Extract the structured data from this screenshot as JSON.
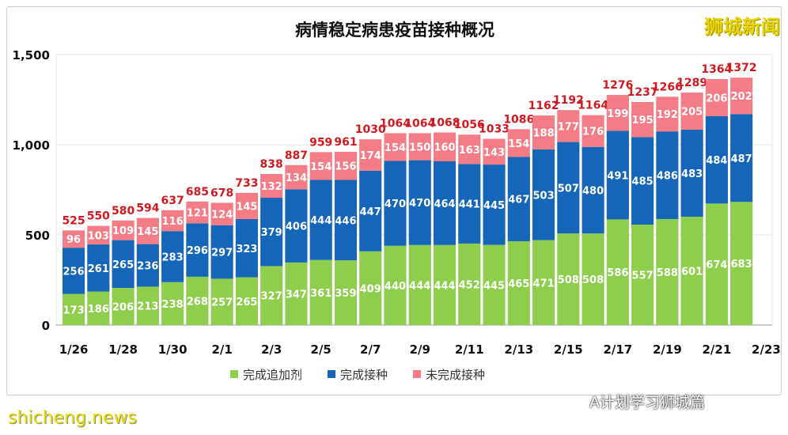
{
  "brand": "狮城新闻",
  "site_watermark": "shicheng.news",
  "wechat_watermark": "A计划学习狮城篇",
  "chart_data": {
    "type": "bar",
    "stacked": true,
    "title": "病情稳定病患疫苗接种概况",
    "categories": [
      "1/26",
      "1/27",
      "1/28",
      "1/29",
      "1/30",
      "1/31",
      "2/1",
      "2/2",
      "2/3",
      "2/4",
      "2/5",
      "2/6",
      "2/7",
      "2/8",
      "2/9",
      "2/10",
      "2/11",
      "2/12",
      "2/13",
      "2/14",
      "2/15",
      "2/16",
      "2/17",
      "2/18",
      "2/19",
      "2/20",
      "2/21",
      "2/22"
    ],
    "xtick_labels": [
      "1/26",
      "1/28",
      "1/30",
      "2/1",
      "2/3",
      "2/5",
      "2/7",
      "2/9",
      "2/11",
      "2/13",
      "2/15",
      "2/17",
      "2/19",
      "2/21",
      "2/23"
    ],
    "yticks": [
      0,
      500,
      1000,
      1500
    ],
    "ytick_labels": [
      "0",
      "500",
      "1,000",
      "1,500"
    ],
    "ylim": [
      0,
      1500
    ],
    "grid": true,
    "legend_position": "bottom",
    "series": [
      {
        "name": "完成追加剂",
        "color": "#8fce4c",
        "values": [
          173,
          186,
          206,
          213,
          238,
          268,
          257,
          265,
          327,
          347,
          361,
          359,
          409,
          440,
          444,
          444,
          452,
          445,
          465,
          471,
          508,
          508,
          586,
          557,
          588,
          601,
          674,
          683
        ]
      },
      {
        "name": "完成接种",
        "color": "#1565b8",
        "values": [
          256,
          261,
          265,
          236,
          283,
          296,
          297,
          323,
          379,
          406,
          444,
          446,
          447,
          470,
          470,
          464,
          441,
          445,
          467,
          503,
          507,
          480,
          491,
          485,
          486,
          483,
          484,
          487
        ]
      },
      {
        "name": "未完成接种",
        "color": "#f47c86",
        "values": [
          96,
          103,
          109,
          145,
          116,
          121,
          124,
          145,
          132,
          134,
          154,
          156,
          174,
          154,
          150,
          160,
          163,
          143,
          154,
          188,
          177,
          176,
          199,
          195,
          192,
          205,
          206,
          202
        ]
      }
    ],
    "totals": [
      525,
      550,
      580,
      594,
      637,
      685,
      678,
      733,
      838,
      887,
      959,
      961,
      1030,
      1064,
      1064,
      1068,
      1056,
      1033,
      1086,
      1162,
      1192,
      1164,
      1276,
      1237,
      1266,
      1289,
      1364,
      1372
    ],
    "total_label_color": "#d0191f"
  }
}
